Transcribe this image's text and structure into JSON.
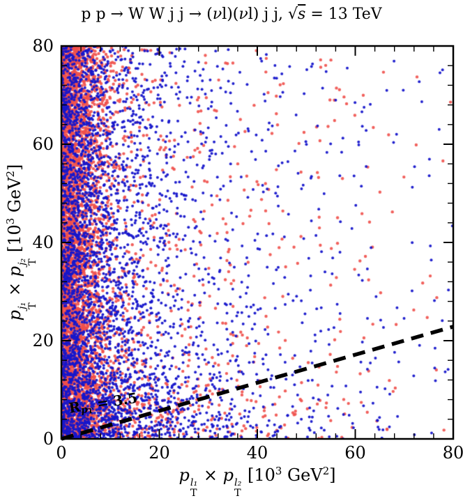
{
  "page": {
    "background": "#ffffff"
  },
  "labels": {
    "title_plain": "p p → W W j j  → (νl)(νl) j j,  √s = 13 TeV",
    "title_tokens": [
      {
        "v": "p p → W W j j  → ("
      },
      {
        "v": "ν",
        "i": true
      },
      {
        "v": "l)("
      },
      {
        "v": "ν",
        "i": true
      },
      {
        "v": "l) j j,   √"
      },
      {
        "v": "s",
        "i": true,
        "ol": true
      },
      {
        "v": " = 13 TeV"
      }
    ],
    "y_tokens": [
      {
        "v": "p",
        "i": true
      },
      {
        "stk": [
          "j₁",
          "T"
        ]
      },
      {
        "v": " × "
      },
      {
        "v": "p",
        "i": true
      },
      {
        "stk": [
          "j₂",
          "T"
        ]
      },
      {
        "v": "   [10"
      },
      {
        "sp": "3"
      },
      {
        "v": " GeV"
      },
      {
        "sp": "2"
      },
      {
        "v": "]"
      }
    ],
    "x_tokens": [
      {
        "v": "p",
        "i": true
      },
      {
        "stk": [
          "l₁",
          "T"
        ]
      },
      {
        "v": " × "
      },
      {
        "v": "p",
        "i": true
      },
      {
        "stk": [
          "l₂",
          "T"
        ]
      },
      {
        "v": "   [10"
      },
      {
        "sp": "3"
      },
      {
        "v": " GeV"
      },
      {
        "sp": "2"
      },
      {
        "v": "]"
      }
    ],
    "ratio_tokens": [
      {
        "v": "R",
        "b": true
      },
      {
        "sb": "p"
      },
      {
        "sb2": "T"
      },
      {
        "v": " = 3.5",
        "b": true
      }
    ],
    "ratio_plain": "R_pT = 3.5"
  },
  "axes": {
    "x": {
      "ticks": [
        "0",
        "20",
        "40",
        "60",
        "80"
      ],
      "minor_step": 4,
      "range": [
        0,
        80
      ]
    },
    "y": {
      "ticks": [
        "0",
        "20",
        "40",
        "60",
        "80"
      ],
      "minor_step": 4,
      "range": [
        0,
        80
      ]
    }
  },
  "chart_data": {
    "type": "scatter",
    "title": "p p → W W j j → (νl)(νl) j j, √s = 13 TeV",
    "xlabel": "pT(l1) × pT(l2)  [10^3 GeV^2]",
    "ylabel": "pT(j1) × pT(j2)  [10^3 GeV^2]",
    "xlim": [
      0,
      80
    ],
    "ylim": [
      0,
      80
    ],
    "grid": false,
    "legend": "none",
    "reference_line": {
      "style": "dashed",
      "color": "#000000",
      "label": "R_pT = 3.5",
      "ratio": 3.5,
      "equation": "y = x / 3.5",
      "from": [
        0,
        0
      ],
      "to": [
        80,
        22.857
      ]
    },
    "series": [
      {
        "name": "red-events",
        "color": "#f0504b",
        "marker": "circle",
        "marker_radius": 2.2,
        "opacity": 0.9,
        "count": 5200,
        "seed": 12345,
        "x_distribution": "heavy concentration below ~8 (solid band), exponentially decaying tail to 80",
        "y_distribution": "approximately uniform 0-80 plus low-y concentration along x-axis",
        "components": [
          {
            "weight": 0.8,
            "x": {
              "dist": "exp",
              "scale": 3.2
            },
            "y": {
              "dist": "uniform",
              "min": 0,
              "max": 80
            }
          },
          {
            "weight": 0.12,
            "x": {
              "dist": "exp",
              "scale": 18
            },
            "y": {
              "dist": "exp",
              "scale": 14
            }
          },
          {
            "weight": 0.08,
            "x": {
              "dist": "exp",
              "scale": 30
            },
            "y": {
              "dist": "uniform",
              "min": 0,
              "max": 80
            }
          }
        ]
      },
      {
        "name": "blue-events",
        "color": "#1616cb",
        "marker": "circle",
        "marker_radius": 2.0,
        "opacity": 0.95,
        "count": 3800,
        "seed": 67890,
        "x_distribution": "dense to ~25, exponentially decaying tail to 80",
        "y_distribution": "approximately uniform 0-80 plus low-y concentration along x-axis",
        "components": [
          {
            "weight": 0.55,
            "x": {
              "dist": "exp",
              "scale": 8
            },
            "y": {
              "dist": "uniform",
              "min": 0,
              "max": 80
            }
          },
          {
            "weight": 0.25,
            "x": {
              "dist": "exp",
              "scale": 16
            },
            "y": {
              "dist": "exp",
              "scale": 12
            }
          },
          {
            "weight": 0.2,
            "x": {
              "dist": "exp",
              "scale": 28
            },
            "y": {
              "dist": "uniform",
              "min": 0,
              "max": 80
            }
          }
        ]
      }
    ]
  }
}
